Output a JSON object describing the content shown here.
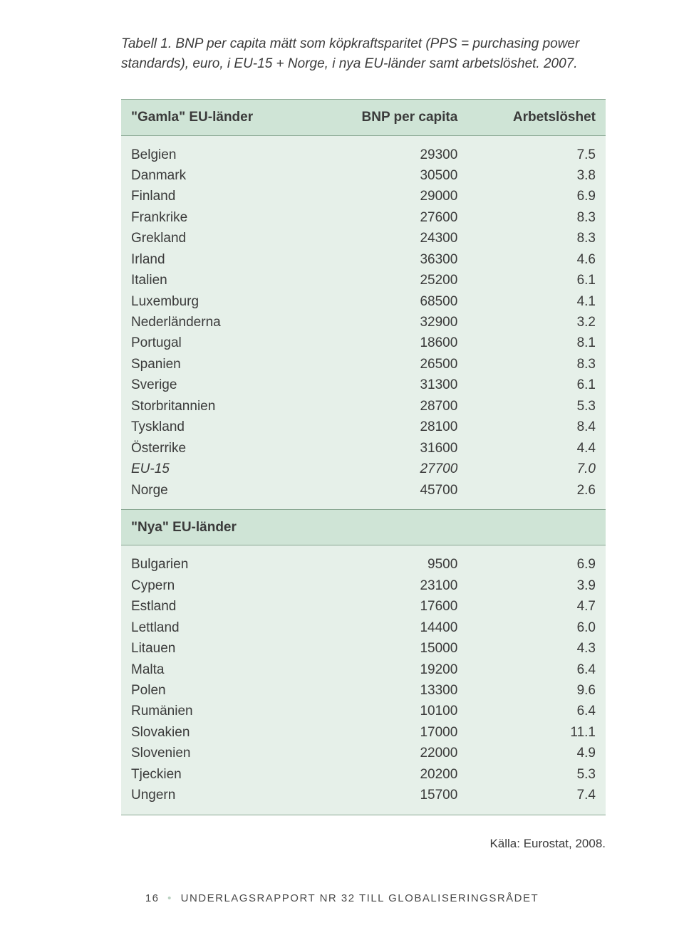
{
  "caption": "Tabell 1. BNP per capita mätt som köpkraftsparitet (PPS = purchasing power standards), euro, i EU-15 + Norge, i nya EU-länder samt arbetslöshet. 2007.",
  "columns": {
    "c0": "\"Gamla\" EU-länder",
    "c1": "BNP per capita",
    "c2": "Arbetslöshet"
  },
  "groupA": [
    {
      "label": "Belgien",
      "bnp": "29300",
      "arb": "7.5",
      "italic": false
    },
    {
      "label": "Danmark",
      "bnp": "30500",
      "arb": "3.8",
      "italic": false
    },
    {
      "label": "Finland",
      "bnp": "29000",
      "arb": "6.9",
      "italic": false
    },
    {
      "label": "Frankrike",
      "bnp": "27600",
      "arb": "8.3",
      "italic": false
    },
    {
      "label": "Grekland",
      "bnp": "24300",
      "arb": "8.3",
      "italic": false
    },
    {
      "label": "Irland",
      "bnp": "36300",
      "arb": "4.6",
      "italic": false
    },
    {
      "label": "Italien",
      "bnp": "25200",
      "arb": "6.1",
      "italic": false
    },
    {
      "label": "Luxemburg",
      "bnp": "68500",
      "arb": "4.1",
      "italic": false
    },
    {
      "label": "Nederländerna",
      "bnp": "32900",
      "arb": "3.2",
      "italic": false
    },
    {
      "label": "Portugal",
      "bnp": "18600",
      "arb": "8.1",
      "italic": false
    },
    {
      "label": "Spanien",
      "bnp": "26500",
      "arb": "8.3",
      "italic": false
    },
    {
      "label": "Sverige",
      "bnp": "31300",
      "arb": "6.1",
      "italic": false
    },
    {
      "label": "Storbritannien",
      "bnp": "28700",
      "arb": "5.3",
      "italic": false
    },
    {
      "label": "Tyskland",
      "bnp": "28100",
      "arb": "8.4",
      "italic": false
    },
    {
      "label": "Österrike",
      "bnp": "31600",
      "arb": "4.4",
      "italic": false
    },
    {
      "label": "EU-15",
      "bnp": "27700",
      "arb": "7.0",
      "italic": true
    },
    {
      "label": "Norge",
      "bnp": "45700",
      "arb": "2.6",
      "italic": false
    }
  ],
  "sectionB_header": "\"Nya\" EU-länder",
  "groupB": [
    {
      "label": "Bulgarien",
      "bnp": "9500",
      "arb": "6.9"
    },
    {
      "label": "Cypern",
      "bnp": "23100",
      "arb": "3.9"
    },
    {
      "label": "Estland",
      "bnp": "17600",
      "arb": "4.7"
    },
    {
      "label": "Lettland",
      "bnp": "14400",
      "arb": "6.0"
    },
    {
      "label": "Litauen",
      "bnp": "15000",
      "arb": "4.3"
    },
    {
      "label": "Malta",
      "bnp": "19200",
      "arb": "6.4"
    },
    {
      "label": "Polen",
      "bnp": "13300",
      "arb": "9.6"
    },
    {
      "label": "Rumänien",
      "bnp": "10100",
      "arb": "6.4"
    },
    {
      "label": "Slovakien",
      "bnp": "17000",
      "arb": "11.1"
    },
    {
      "label": "Slovenien",
      "bnp": "22000",
      "arb": "4.9"
    },
    {
      "label": "Tjeckien",
      "bnp": "20200",
      "arb": "5.3"
    },
    {
      "label": "Ungern",
      "bnp": "15700",
      "arb": "7.4"
    }
  ],
  "source": "Källa: Eurostat, 2008.",
  "footer": {
    "page": "16",
    "text": "UNDERLAGSRAPPORT NR 32 TILL GLOBALISERINGSRÅDET"
  },
  "style": {
    "header_bg": "#cfe4d6",
    "body_bg": "#e6f0e9",
    "border": "#8aa893",
    "text": "#3a3a3a",
    "dot": "#b9d1c0",
    "font_size_body": 19,
    "font_size_footer": 15
  }
}
